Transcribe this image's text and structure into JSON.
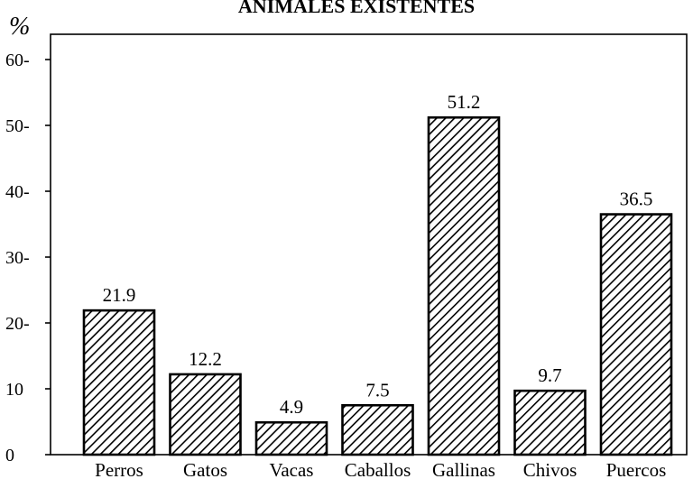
{
  "chart_data": {
    "type": "bar",
    "title": "ANIMALES EXISTENTES",
    "ylabel": "%",
    "xlabel": "",
    "categories": [
      "Perros",
      "Gatos",
      "Vacas",
      "Caballos",
      "Gallinas",
      "Chivos",
      "Puercos"
    ],
    "values": [
      21.9,
      12.2,
      4.9,
      7.5,
      51.2,
      9.7,
      36.5
    ],
    "value_labels": [
      "21.9",
      "12.2",
      "4.9",
      "7.5",
      "51.2",
      "9.7",
      "36.5"
    ],
    "yticks": [
      "60-",
      "50-",
      "40-",
      "30-",
      "20-",
      "10",
      "0"
    ],
    "ytick_values": [
      60,
      50,
      40,
      30,
      20,
      10,
      0
    ],
    "ylim": [
      0,
      65
    ],
    "grid": false,
    "bar_fill": "hatched"
  }
}
